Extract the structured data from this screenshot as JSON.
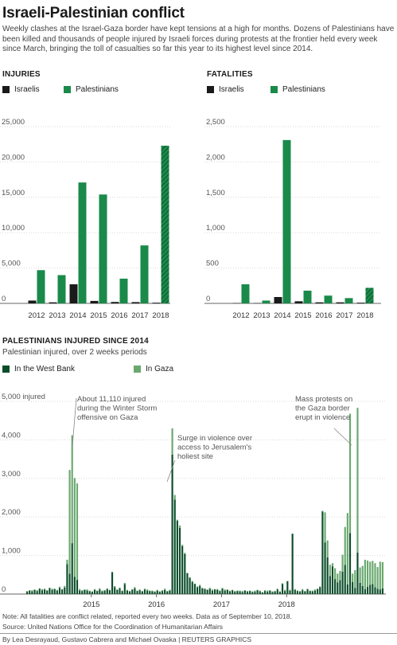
{
  "title": "Israeli-Palestinian conflict",
  "intro": "Weekly clashes at the Israel-Gaza border have kept tensions at a high for months. Dozens of Palestinians have been killed and thousands of people injured by Israeli forces during protests at the frontier held every week since March, bringing the toll of casualties so far this year to its highest level since 2014.",
  "colors": {
    "israelis": "#1a1a1a",
    "palestinians": "#1a8a4a",
    "west_bank": "#0b4d2a",
    "gaza": "#6aa86f"
  },
  "injuries": {
    "heading": "INJURIES",
    "legend_israelis": "Israelis",
    "legend_palestinians": "Palestinians"
  },
  "fatalities": {
    "heading": "FATALITIES",
    "legend_israelis": "Israelis",
    "legend_palestinians": "Palestinians"
  },
  "timeline": {
    "heading": "PALESTINIANS INJURED SINCE 2014",
    "subtitle": "Palestinian injured, over 2 weeks periods",
    "legend_west_bank": "In the West Bank",
    "legend_gaza": "In Gaza",
    "annotations": [
      {
        "id": "a1",
        "lines": [
          "About 11,110 injured",
          "during the Winter Storm",
          "offensive on Gaza"
        ]
      },
      {
        "id": "a2",
        "lines": [
          "Surge in violence over",
          "access to Jerusalem's",
          "holiest site"
        ]
      },
      {
        "id": "a3",
        "lines": [
          "Mass protests on",
          "the Gaza border",
          "erupt in violence"
        ]
      }
    ]
  },
  "footer": {
    "note": "Note: All fatalities are conflict related, reported every two weeks. Data as of September 10, 2018.",
    "source": "Source: United Nations Office for the Coordination of Humanitarian Affairs",
    "credit": "By Lea Desrayaud, Gustavo Cabrera and Michael Ovaska | REUTERS GRAPHICS"
  },
  "chart_data": [
    {
      "type": "bar",
      "title": "INJURIES",
      "categories": [
        "2012",
        "2013",
        "2014",
        "2015",
        "2016",
        "2017",
        "2018"
      ],
      "series": [
        {
          "name": "Israelis",
          "values": [
            400,
            150,
            2700,
            350,
            200,
            180,
            100
          ]
        },
        {
          "name": "Palestinians",
          "values": [
            4700,
            4000,
            17100,
            15400,
            3500,
            8200,
            22300
          ]
        }
      ],
      "partial_last": true,
      "ylim": [
        0,
        25000
      ],
      "yticks": [
        0,
        5000,
        10000,
        15000,
        20000,
        25000
      ],
      "ytick_labels": [
        "0",
        "5,000",
        "10,000",
        "15,000",
        "20,000",
        "25,000"
      ]
    },
    {
      "type": "bar",
      "title": "FATALITIES",
      "categories": [
        "2012",
        "2013",
        "2014",
        "2015",
        "2016",
        "2017",
        "2018"
      ],
      "series": [
        {
          "name": "Israelis",
          "values": [
            5,
            5,
            90,
            30,
            15,
            15,
            10
          ]
        },
        {
          "name": "Palestinians",
          "values": [
            270,
            40,
            2310,
            180,
            110,
            75,
            220
          ]
        }
      ],
      "partial_last": true,
      "ylim": [
        0,
        2500
      ],
      "yticks": [
        0,
        500,
        1000,
        1500,
        2000,
        2500
      ],
      "ytick_labels": [
        "0",
        "500",
        "1,000",
        "1,500",
        "2,000",
        "2,500"
      ]
    },
    {
      "type": "bar",
      "stacked": true,
      "title": "PALESTINIANS INJURED SINCE 2014",
      "subtitle": "Palestinian injured, over 2 weeks periods",
      "start_year": 2014,
      "start_period": 0,
      "periods_per_year": 26,
      "ylim": [
        0,
        5000
      ],
      "yticks": [
        0,
        1000,
        2000,
        3000,
        4000,
        5000
      ],
      "ytick_labels": [
        "0",
        "1,000",
        "2,000",
        "3,000",
        "4,000",
        "5,000 injured"
      ],
      "xtick_labels": [
        "2015",
        "2016",
        "2017",
        "2018"
      ],
      "series": [
        {
          "name": "In the West Bank",
          "values": [
            60,
            90,
            70,
            110,
            80,
            140,
            100,
            120,
            90,
            150,
            110,
            130,
            90,
            160,
            120,
            170,
            780,
            530,
            1320,
            450,
            370,
            90,
            80,
            110,
            90,
            70,
            60,
            110,
            80,
            120,
            70,
            90,
            130,
            100,
            560,
            180,
            110,
            150,
            80,
            260,
            90,
            70,
            110,
            150,
            80,
            100,
            70,
            120,
            90,
            80,
            70,
            60,
            90,
            60,
            80,
            110,
            70,
            90,
            3620,
            2450,
            1900,
            1720,
            1240,
            1040,
            540,
            420,
            310,
            260,
            180,
            210,
            150,
            130,
            110,
            140,
            90,
            120,
            110,
            80,
            140,
            90,
            110,
            70,
            100,
            60,
            80,
            70,
            50,
            90,
            60,
            80,
            50,
            60,
            100,
            70,
            40,
            80,
            60,
            90,
            50,
            70,
            120,
            60,
            260,
            80,
            330,
            90,
            1560,
            110,
            80,
            60,
            100,
            70,
            120,
            80,
            70,
            90,
            130,
            180,
            2140,
            1340,
            950,
            470,
            720,
            390,
            300,
            360,
            580,
            760,
            250,
            1580,
            310,
            160,
            1080,
            290,
            210,
            130,
            190,
            240,
            260,
            180,
            140,
            120,
            150
          ]
        },
        {
          "name": "In Gaza",
          "values": [
            20,
            10,
            30,
            10,
            20,
            10,
            30,
            20,
            10,
            20,
            30,
            10,
            20,
            30,
            10,
            40,
            110,
            2690,
            2800,
            2560,
            2500,
            40,
            20,
            10,
            30,
            20,
            10,
            20,
            10,
            30,
            20,
            10,
            20,
            10,
            20,
            30,
            10,
            20,
            10,
            30,
            20,
            10,
            20,
            30,
            10,
            20,
            10,
            20,
            30,
            10,
            20,
            10,
            20,
            10,
            20,
            30,
            10,
            20,
            680,
            120,
            30,
            60,
            40,
            30,
            10,
            20,
            30,
            10,
            20,
            30,
            10,
            20,
            10,
            20,
            30,
            10,
            20,
            10,
            20,
            30,
            10,
            20,
            10,
            20,
            10,
            20,
            30,
            10,
            20,
            10,
            20,
            30,
            10,
            20,
            10,
            20,
            30,
            10,
            20,
            10,
            20,
            10,
            20,
            30,
            10,
            20,
            10,
            20,
            10,
            20,
            30,
            10,
            20,
            10,
            20,
            30,
            10,
            20,
            20,
            780,
            440,
            290,
            80,
            280,
            230,
            240,
            440,
            980,
            1850,
            3100,
            220,
            460,
            3750,
            400,
            520,
            760,
            680,
            600,
            600,
            620,
            560,
            720,
            680
          ]
        }
      ],
      "annotations": [
        "About 11,110 injured during the Winter Storm offensive on Gaza",
        "Surge in violence over access to Jerusalem's holiest site",
        "Mass protests on the Gaza border erupt in violence"
      ]
    }
  ]
}
